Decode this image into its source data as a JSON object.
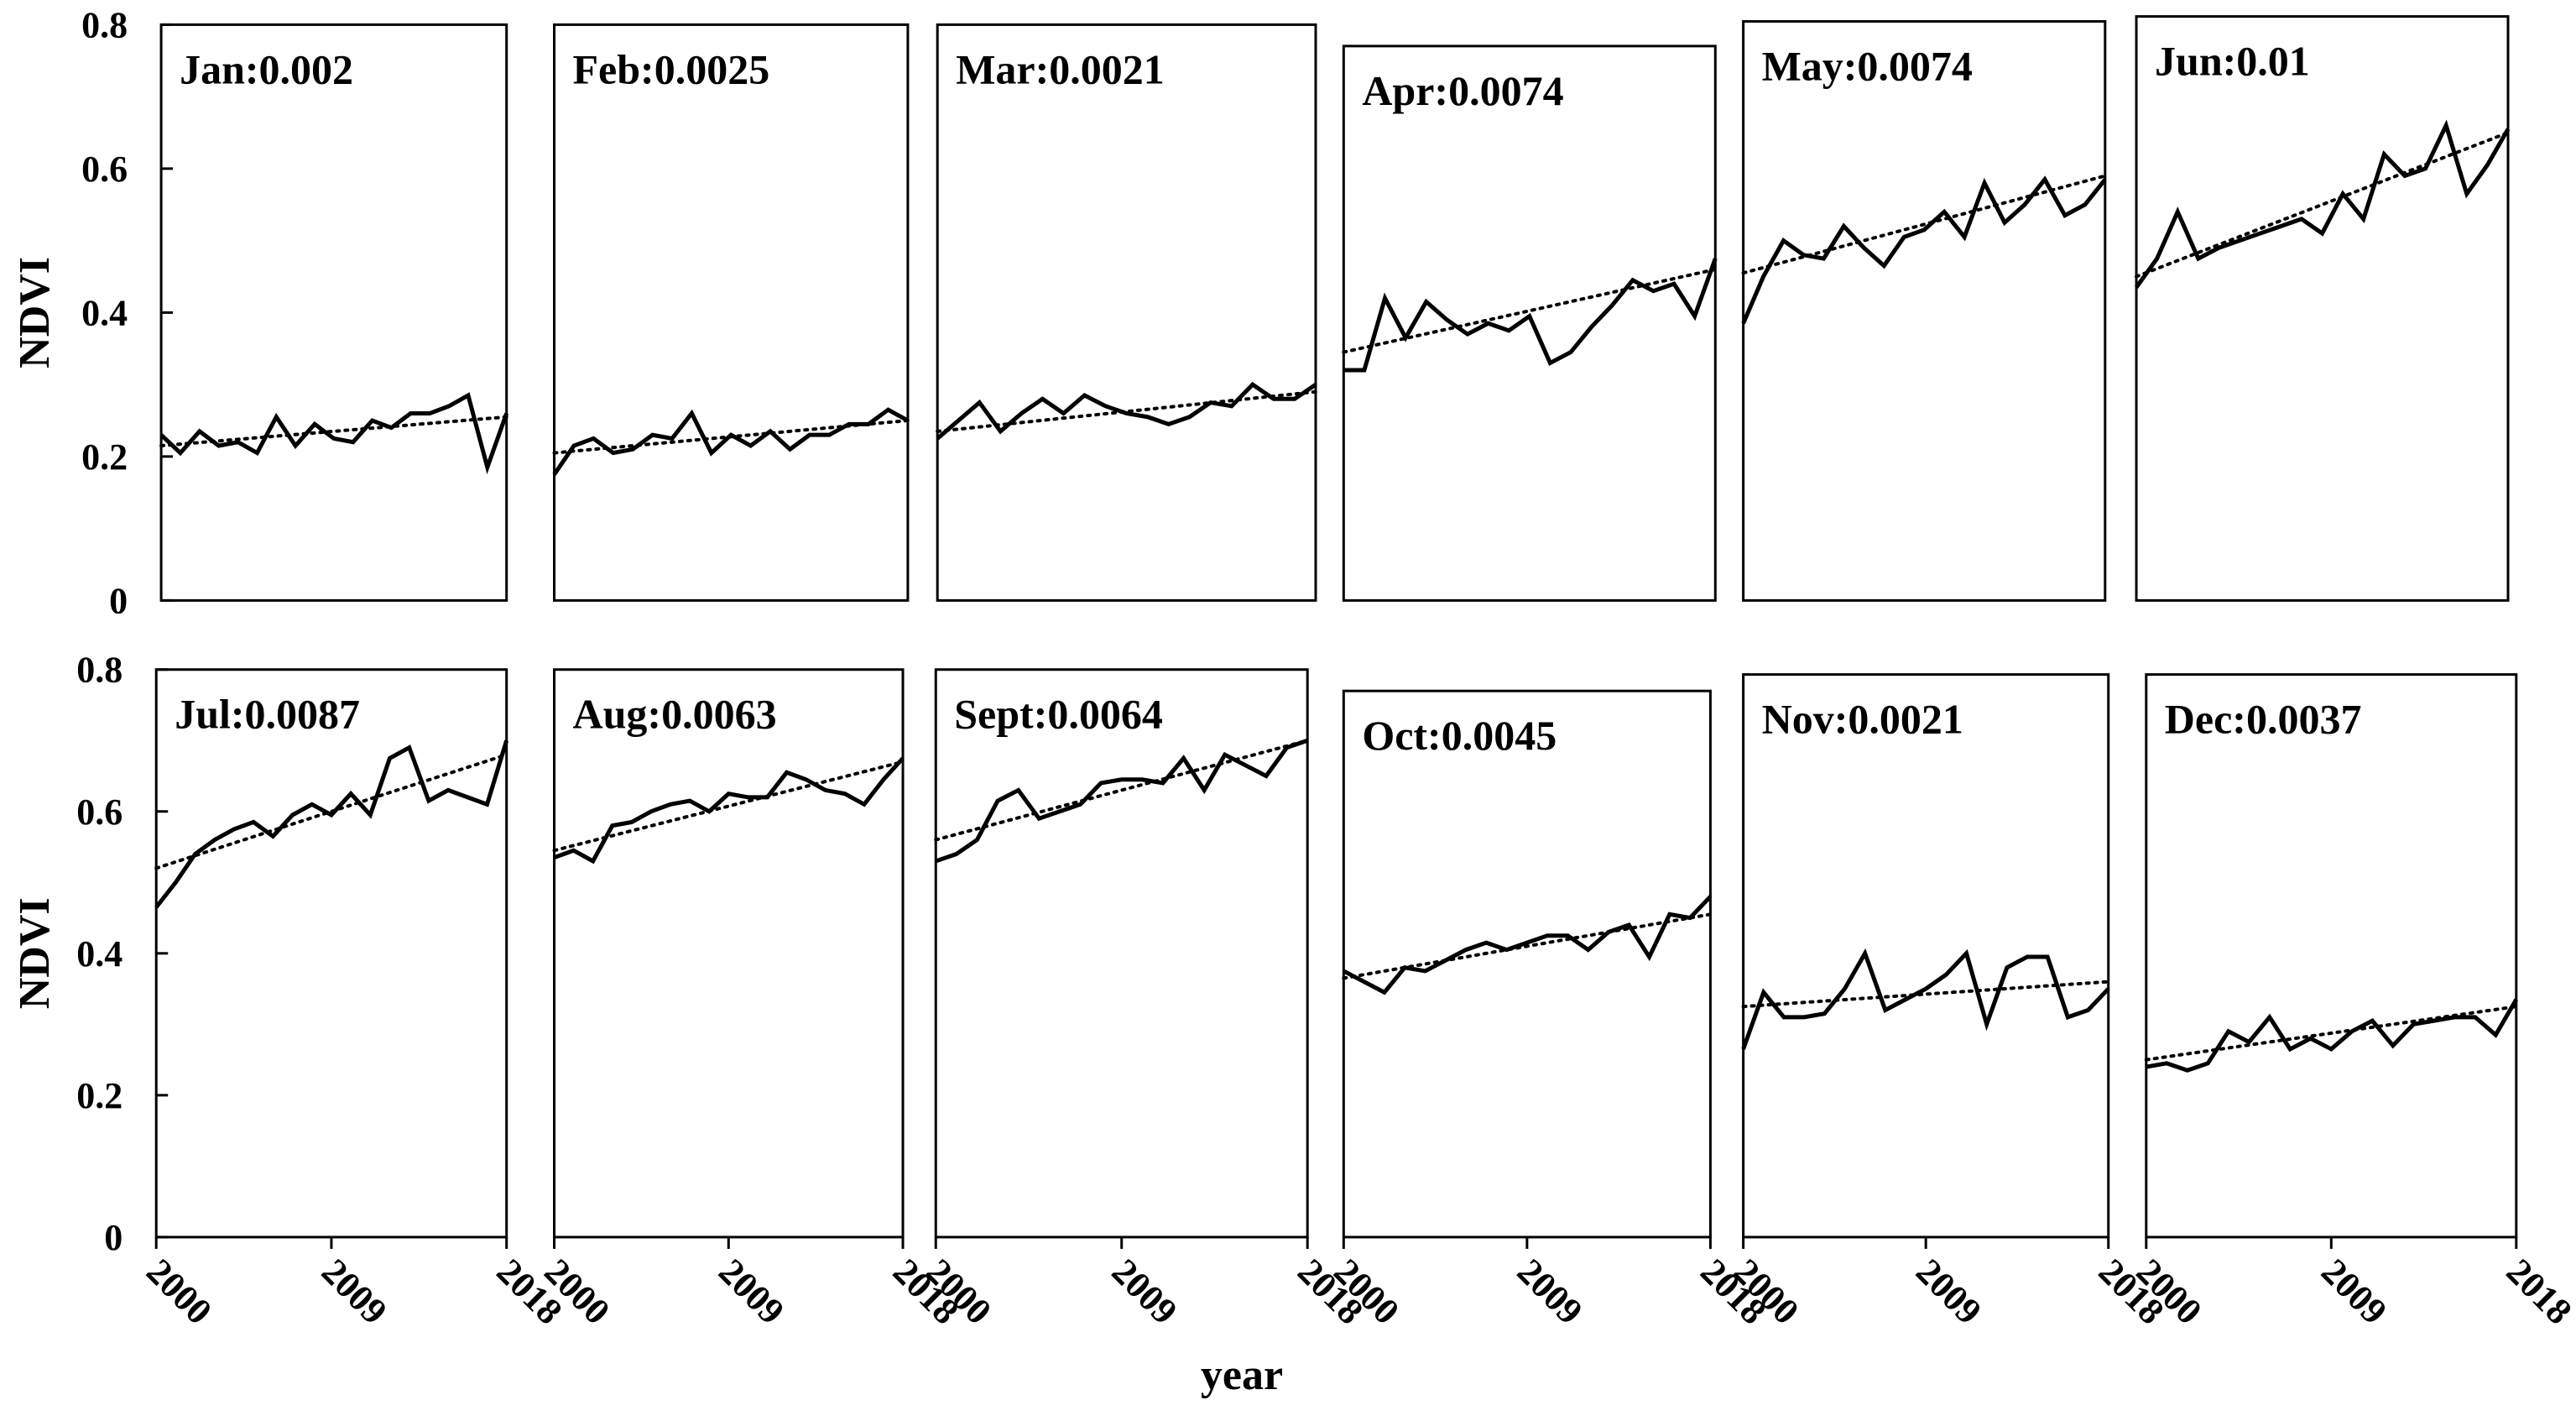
{
  "xlabel": "year",
  "chart_data": [
    {
      "type": "line",
      "title": "Jan:0.002",
      "ylabel": "NDVI",
      "xlim": [
        2000,
        2018
      ],
      "ylim": [
        0,
        0.8
      ],
      "yticks": [
        0,
        0.2,
        0.4,
        0.6,
        0.8
      ],
      "x": [
        2000,
        2001,
        2002,
        2003,
        2004,
        2005,
        2006,
        2007,
        2008,
        2009,
        2010,
        2011,
        2012,
        2013,
        2014,
        2015,
        2016,
        2017,
        2018
      ],
      "values": [
        0.23,
        0.205,
        0.235,
        0.215,
        0.22,
        0.205,
        0.255,
        0.215,
        0.245,
        0.225,
        0.22,
        0.25,
        0.24,
        0.26,
        0.26,
        0.27,
        0.285,
        0.185,
        0.26
      ],
      "trend": [
        0.215,
        0.255
      ],
      "color": "#000000"
    },
    {
      "type": "line",
      "title": "Feb:0.0025",
      "xlim": [
        2000,
        2018
      ],
      "ylim": [
        0,
        0.8
      ],
      "x": [
        2000,
        2001,
        2002,
        2003,
        2004,
        2005,
        2006,
        2007,
        2008,
        2009,
        2010,
        2011,
        2012,
        2013,
        2014,
        2015,
        2016,
        2017,
        2018
      ],
      "values": [
        0.175,
        0.215,
        0.225,
        0.205,
        0.21,
        0.23,
        0.225,
        0.26,
        0.205,
        0.23,
        0.215,
        0.235,
        0.21,
        0.23,
        0.23,
        0.245,
        0.245,
        0.265,
        0.25
      ],
      "trend": [
        0.205,
        0.25
      ],
      "color": "#000000"
    },
    {
      "type": "line",
      "title": "Mar:0.0021",
      "xlim": [
        2000,
        2018
      ],
      "ylim": [
        0,
        0.8
      ],
      "x": [
        2000,
        2001,
        2002,
        2003,
        2004,
        2005,
        2006,
        2007,
        2008,
        2009,
        2010,
        2011,
        2012,
        2013,
        2014,
        2015,
        2016,
        2017,
        2018
      ],
      "values": [
        0.225,
        0.25,
        0.275,
        0.235,
        0.26,
        0.28,
        0.26,
        0.285,
        0.27,
        0.26,
        0.255,
        0.245,
        0.255,
        0.275,
        0.27,
        0.3,
        0.28,
        0.28,
        0.3
      ],
      "trend": [
        0.235,
        0.29
      ],
      "color": "#000000"
    },
    {
      "type": "line",
      "title": "Apr:0.0074",
      "xlim": [
        2000,
        2018
      ],
      "ylim": [
        0,
        0.8
      ],
      "x": [
        2000,
        2001,
        2002,
        2003,
        2004,
        2005,
        2006,
        2007,
        2008,
        2009,
        2010,
        2011,
        2012,
        2013,
        2014,
        2015,
        2016,
        2017,
        2018
      ],
      "values": [
        0.32,
        0.32,
        0.42,
        0.365,
        0.415,
        0.39,
        0.37,
        0.385,
        0.375,
        0.395,
        0.33,
        0.345,
        0.38,
        0.41,
        0.445,
        0.43,
        0.44,
        0.395,
        0.475
      ],
      "trend": [
        0.345,
        0.46
      ],
      "color": "#000000"
    },
    {
      "type": "line",
      "title": "May:0.0074",
      "xlim": [
        2000,
        2018
      ],
      "ylim": [
        0,
        0.8
      ],
      "x": [
        2000,
        2001,
        2002,
        2003,
        2004,
        2005,
        2006,
        2007,
        2008,
        2009,
        2010,
        2011,
        2012,
        2013,
        2014,
        2015,
        2016,
        2017,
        2018
      ],
      "values": [
        0.385,
        0.45,
        0.5,
        0.48,
        0.475,
        0.52,
        0.49,
        0.465,
        0.505,
        0.515,
        0.54,
        0.505,
        0.58,
        0.525,
        0.55,
        0.585,
        0.535,
        0.55,
        0.585
      ],
      "trend": [
        0.455,
        0.59
      ],
      "color": "#000000"
    },
    {
      "type": "line",
      "title": "Jun:0.01",
      "xlim": [
        2000,
        2018
      ],
      "ylim": [
        0,
        0.8
      ],
      "x": [
        2000,
        2001,
        2002,
        2003,
        2004,
        2005,
        2006,
        2007,
        2008,
        2009,
        2010,
        2011,
        2012,
        2013,
        2014,
        2015,
        2016,
        2017,
        2018
      ],
      "values": [
        0.435,
        0.475,
        0.54,
        0.475,
        0.49,
        0.5,
        0.51,
        0.52,
        0.53,
        0.51,
        0.565,
        0.53,
        0.62,
        0.59,
        0.6,
        0.66,
        0.565,
        0.605,
        0.655
      ],
      "trend": [
        0.45,
        0.65
      ],
      "color": "#000000"
    },
    {
      "type": "line",
      "title": "Jul:0.0087",
      "ylabel": "NDVI",
      "xlim": [
        2000,
        2018
      ],
      "ylim": [
        0,
        0.8
      ],
      "yticks": [
        0,
        0.2,
        0.4,
        0.6,
        0.8
      ],
      "xticks": [
        2000,
        2009,
        2018
      ],
      "x": [
        2000,
        2001,
        2002,
        2003,
        2004,
        2005,
        2006,
        2007,
        2008,
        2009,
        2010,
        2011,
        2012,
        2013,
        2014,
        2015,
        2016,
        2017,
        2018
      ],
      "values": [
        0.465,
        0.5,
        0.54,
        0.56,
        0.575,
        0.585,
        0.565,
        0.595,
        0.61,
        0.595,
        0.625,
        0.595,
        0.675,
        0.69,
        0.615,
        0.63,
        0.62,
        0.61,
        0.7
      ],
      "trend": [
        0.52,
        0.68
      ],
      "color": "#000000"
    },
    {
      "type": "line",
      "title": "Aug:0.0063",
      "xlim": [
        2000,
        2018
      ],
      "ylim": [
        0,
        0.8
      ],
      "xticks": [
        2000,
        2009,
        2018
      ],
      "x": [
        2000,
        2001,
        2002,
        2003,
        2004,
        2005,
        2006,
        2007,
        2008,
        2009,
        2010,
        2011,
        2012,
        2013,
        2014,
        2015,
        2016,
        2017,
        2018
      ],
      "values": [
        0.535,
        0.545,
        0.53,
        0.58,
        0.585,
        0.6,
        0.61,
        0.615,
        0.6,
        0.625,
        0.62,
        0.62,
        0.655,
        0.645,
        0.63,
        0.625,
        0.61,
        0.645,
        0.675
      ],
      "trend": [
        0.545,
        0.67
      ],
      "color": "#000000"
    },
    {
      "type": "line",
      "title": "Sept:0.0064",
      "xlim": [
        2000,
        2018
      ],
      "ylim": [
        0,
        0.8
      ],
      "xticks": [
        2000,
        2009,
        2018
      ],
      "x": [
        2000,
        2001,
        2002,
        2003,
        2004,
        2005,
        2006,
        2007,
        2008,
        2009,
        2010,
        2011,
        2012,
        2013,
        2014,
        2015,
        2016,
        2017,
        2018
      ],
      "values": [
        0.53,
        0.54,
        0.56,
        0.615,
        0.63,
        0.59,
        0.6,
        0.61,
        0.64,
        0.645,
        0.645,
        0.64,
        0.675,
        0.63,
        0.68,
        0.665,
        0.65,
        0.69,
        0.7
      ],
      "trend": [
        0.56,
        0.7
      ],
      "color": "#000000"
    },
    {
      "type": "line",
      "title": "Oct:0.0045",
      "xlim": [
        2000,
        2018
      ],
      "ylim": [
        0,
        0.8
      ],
      "xticks": [
        2000,
        2009,
        2018
      ],
      "x": [
        2000,
        2001,
        2002,
        2003,
        2004,
        2005,
        2006,
        2007,
        2008,
        2009,
        2010,
        2011,
        2012,
        2013,
        2014,
        2015,
        2016,
        2017,
        2018
      ],
      "values": [
        0.375,
        0.36,
        0.345,
        0.38,
        0.375,
        0.39,
        0.405,
        0.415,
        0.405,
        0.415,
        0.425,
        0.425,
        0.405,
        0.43,
        0.44,
        0.395,
        0.455,
        0.45,
        0.48
      ],
      "trend": [
        0.365,
        0.455
      ],
      "color": "#000000"
    },
    {
      "type": "line",
      "title": "Nov:0.0021",
      "xlim": [
        2000,
        2018
      ],
      "ylim": [
        0,
        0.8
      ],
      "xticks": [
        2000,
        2009,
        2018
      ],
      "x": [
        2000,
        2001,
        2002,
        2003,
        2004,
        2005,
        2006,
        2007,
        2008,
        2009,
        2010,
        2011,
        2012,
        2013,
        2014,
        2015,
        2016,
        2017,
        2018
      ],
      "values": [
        0.265,
        0.345,
        0.31,
        0.31,
        0.315,
        0.35,
        0.4,
        0.32,
        0.335,
        0.35,
        0.37,
        0.4,
        0.3,
        0.38,
        0.395,
        0.395,
        0.31,
        0.32,
        0.35
      ],
      "trend": [
        0.325,
        0.36
      ],
      "color": "#000000"
    },
    {
      "type": "line",
      "title": "Dec:0.0037",
      "xlim": [
        2000,
        2018
      ],
      "ylim": [
        0,
        0.8
      ],
      "xticks": [
        2000,
        2009,
        2018
      ],
      "x": [
        2000,
        2001,
        2002,
        2003,
        2004,
        2005,
        2006,
        2007,
        2008,
        2009,
        2010,
        2011,
        2012,
        2013,
        2014,
        2015,
        2016,
        2017,
        2018
      ],
      "values": [
        0.24,
        0.245,
        0.235,
        0.245,
        0.29,
        0.275,
        0.31,
        0.265,
        0.28,
        0.265,
        0.29,
        0.305,
        0.27,
        0.3,
        0.305,
        0.31,
        0.31,
        0.285,
        0.335
      ],
      "trend": [
        0.25,
        0.325
      ],
      "color": "#000000"
    }
  ]
}
